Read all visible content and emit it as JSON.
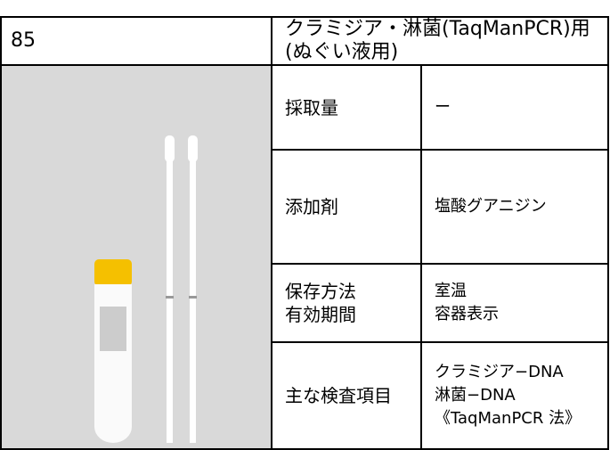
{
  "header": {
    "number": "85",
    "title": "クラミジア・淋菌(TaqManPCR)用(ぬぐい液用)"
  },
  "rows": [
    {
      "label": [
        "採取量"
      ],
      "value": [
        "ー"
      ]
    },
    {
      "label": [
        "添加剤"
      ],
      "value": [
        "塩酸グアニジン"
      ]
    },
    {
      "label": [
        "保存方法",
        "有効期間"
      ],
      "value": [
        "室温",
        "容器表示"
      ]
    },
    {
      "label": [
        "主な検査項目"
      ],
      "value": [
        "クラミジア−DNA",
        "淋菌−DNA",
        "《TaqManPCR 法》"
      ]
    }
  ]
}
